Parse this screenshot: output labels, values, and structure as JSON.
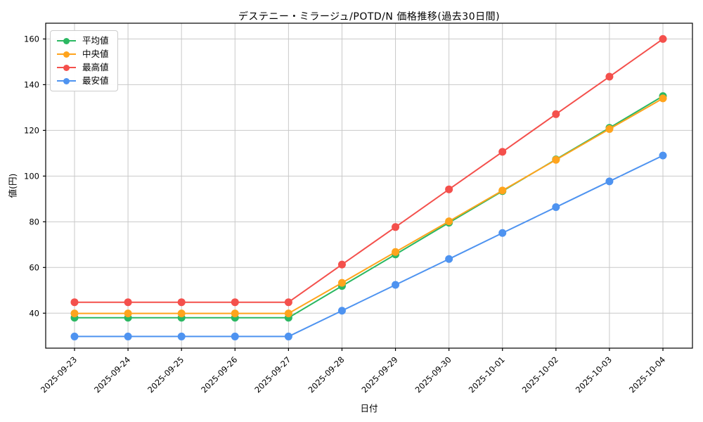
{
  "chart_data": {
    "type": "line",
    "title": "デステニー・ミラージュ/POTD/N 価格推移(過去30日間)",
    "xlabel": "日付",
    "ylabel": "値(円)",
    "categories": [
      "2025-09-23",
      "2025-09-24",
      "2025-09-25",
      "2025-09-26",
      "2025-09-27",
      "2025-09-28",
      "2025-09-29",
      "2025-09-30",
      "2025-10-01",
      "2025-10-02",
      "2025-10-03",
      "2025-10-04"
    ],
    "series": [
      {
        "name": "平均値",
        "color": "#2bb862",
        "values": [
          38.0,
          38.0,
          38.0,
          38.0,
          38.0,
          51.9,
          65.7,
          79.6,
          93.4,
          107.3,
          121.1,
          135.0
        ]
      },
      {
        "name": "中央値",
        "color": "#ffa41d",
        "values": [
          39.9,
          39.9,
          39.9,
          39.9,
          39.9,
          53.3,
          66.8,
          80.2,
          93.7,
          107.1,
          120.6,
          134.0
        ]
      },
      {
        "name": "最高値",
        "color": "#f4504c",
        "values": [
          44.8,
          44.8,
          44.8,
          44.8,
          44.8,
          61.3,
          77.7,
          94.2,
          110.6,
          127.1,
          143.5,
          160.0
        ]
      },
      {
        "name": "最安値",
        "color": "#4e93f0",
        "values": [
          29.8,
          29.8,
          29.8,
          29.8,
          29.8,
          41.1,
          52.4,
          63.7,
          75.1,
          86.4,
          97.7,
          109.0
        ]
      }
    ],
    "yticks": [
      40,
      60,
      80,
      100,
      120,
      140,
      160
    ],
    "ylim": [
      24.7,
      166.9
    ],
    "grid": true,
    "grid_color": "#c9c9c9",
    "legend_position": "upper-left"
  }
}
